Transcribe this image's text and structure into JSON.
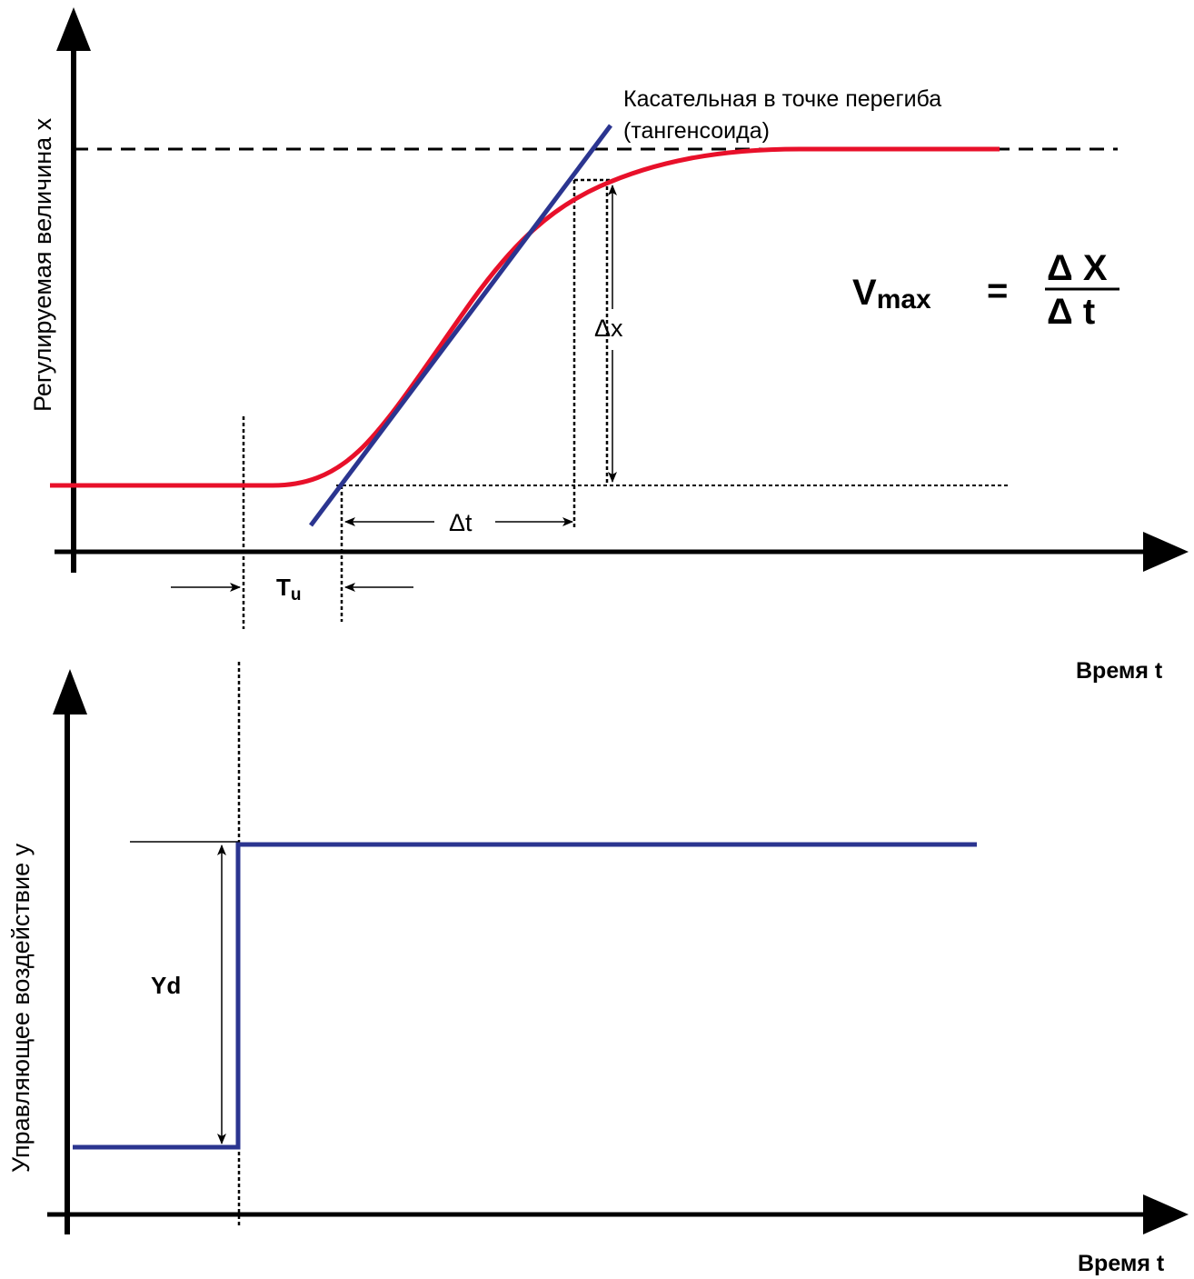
{
  "colors": {
    "response": "#e8102a",
    "tangent": "#2b3590",
    "step": "#2b3590",
    "axes": "#000000"
  },
  "top": {
    "ylabel": "Регулируемая величина x",
    "xlabel": "Время t",
    "tangent_caption_line1": "Касательная в точке перегиба",
    "tangent_caption_line2": "(тангенсоида)",
    "dx_label": "Δx",
    "dt_label": "Δt",
    "tu_main": "T",
    "tu_sub": "u",
    "formula": {
      "lhs_main": "V",
      "lhs_sub": "max",
      "equals": "=",
      "numerator": "Δ X",
      "denominator": "Δ t"
    }
  },
  "bottom": {
    "ylabel": "Управляющее воздействие y",
    "xlabel": "Время t",
    "yd_label": "Yd"
  }
}
